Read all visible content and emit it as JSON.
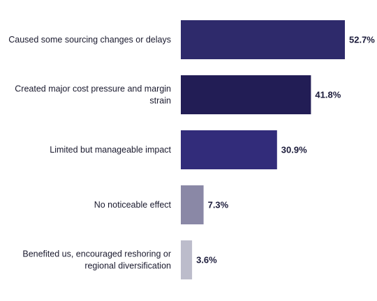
{
  "chart_data": {
    "type": "bar",
    "orientation": "horizontal",
    "categories": [
      "Caused some sourcing changes or delays",
      "Created major cost pressure and margin strain",
      "Limited but manageable impact",
      "No noticeable effect",
      "Benefited us, encouraged reshoring or regional diversification"
    ],
    "category_lines": [
      [
        "Caused some sourcing changes or delays"
      ],
      [
        "Created major cost pressure and margin",
        "strain"
      ],
      [
        "Limited but manageable impact"
      ],
      [
        "No noticeable effect"
      ],
      [
        "Benefited us, encouraged reshoring or",
        "regional diversification"
      ]
    ],
    "values": [
      52.7,
      41.8,
      30.9,
      7.3,
      3.6
    ],
    "value_labels": [
      "52.7%",
      "41.8%",
      "30.9%",
      "7.3%",
      "3.6%"
    ],
    "colors": [
      "#2e2a6b",
      "#221d55",
      "#322c7a",
      "#8a88a6",
      "#bcbccb"
    ],
    "xlim": [
      0,
      55
    ],
    "title": "",
    "xlabel": "",
    "ylabel": "",
    "grid": false,
    "legend": "none"
  }
}
